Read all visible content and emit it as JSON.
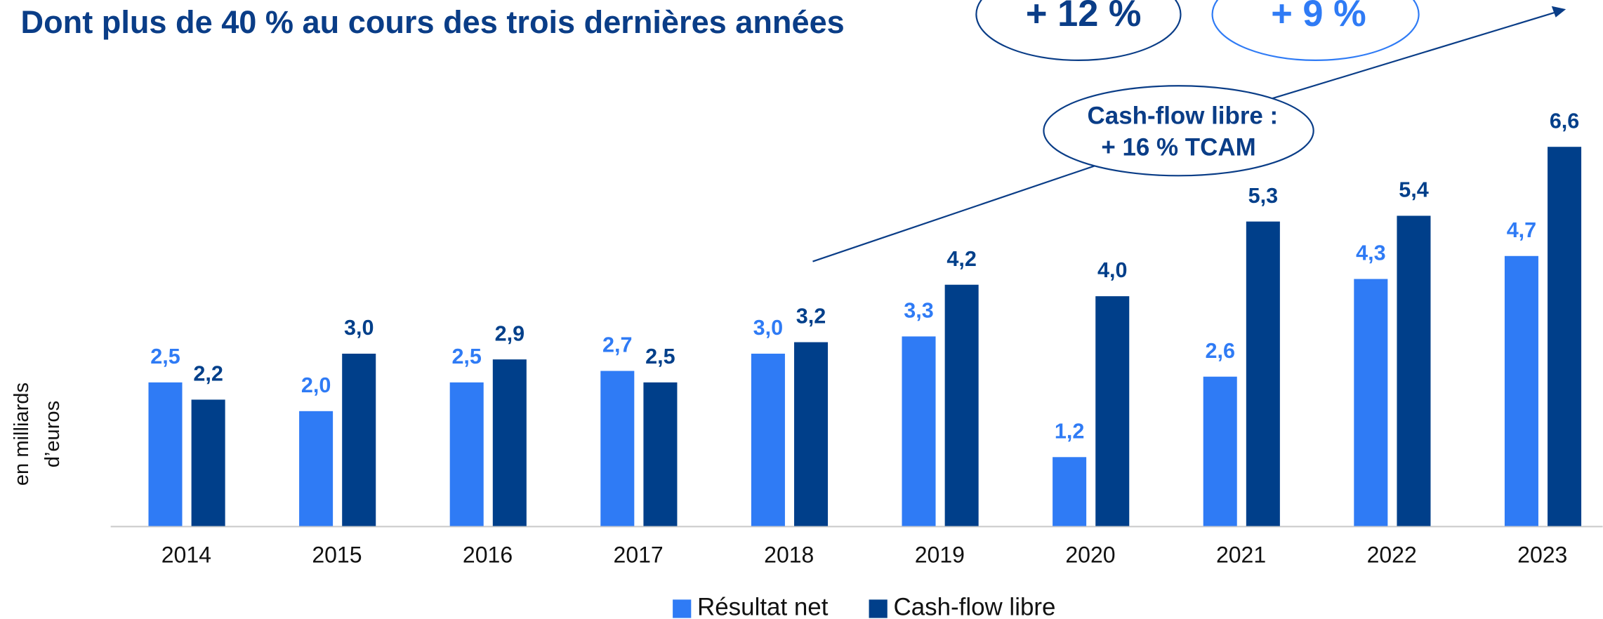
{
  "chart_data": {
    "type": "bar",
    "title": "Dont plus de 40 % au cours des trois dernières années",
    "y_label": [
      "en milliards",
      "d’euros"
    ],
    "annotations": [
      "+ 12 %",
      "+ 9 %",
      "Cash-flow libre :",
      "+ 16 % TCAM"
    ],
    "categories": [
      "2014",
      "2015",
      "2016",
      "2017",
      "2018",
      "2019",
      "2020",
      "2021",
      "2022",
      "2023"
    ],
    "series": [
      {
        "name": "Résultat net",
        "color": "#2f7bf5",
        "values": [
          2.5,
          2.0,
          2.5,
          2.7,
          3.0,
          3.3,
          1.2,
          2.6,
          4.3,
          4.7
        ],
        "value_labels": [
          "2,5",
          "2,0",
          "2,5",
          "2,7",
          "3,0",
          "3,3",
          "1,2",
          "2,6",
          "4,3",
          "4,7"
        ]
      },
      {
        "name": "Cash-flow libre",
        "color": "#003f8a",
        "values": [
          2.2,
          3.0,
          2.9,
          2.5,
          3.2,
          4.2,
          4.0,
          5.3,
          5.4,
          6.6
        ],
        "value_labels": [
          "2,2",
          "3,0",
          "2,9",
          "2,5",
          "3,2",
          "4,2",
          "4,0",
          "5,3",
          "5,4",
          "6,6"
        ]
      }
    ],
    "ylim": [
      0,
      7.2
    ],
    "legend": "bottom"
  }
}
